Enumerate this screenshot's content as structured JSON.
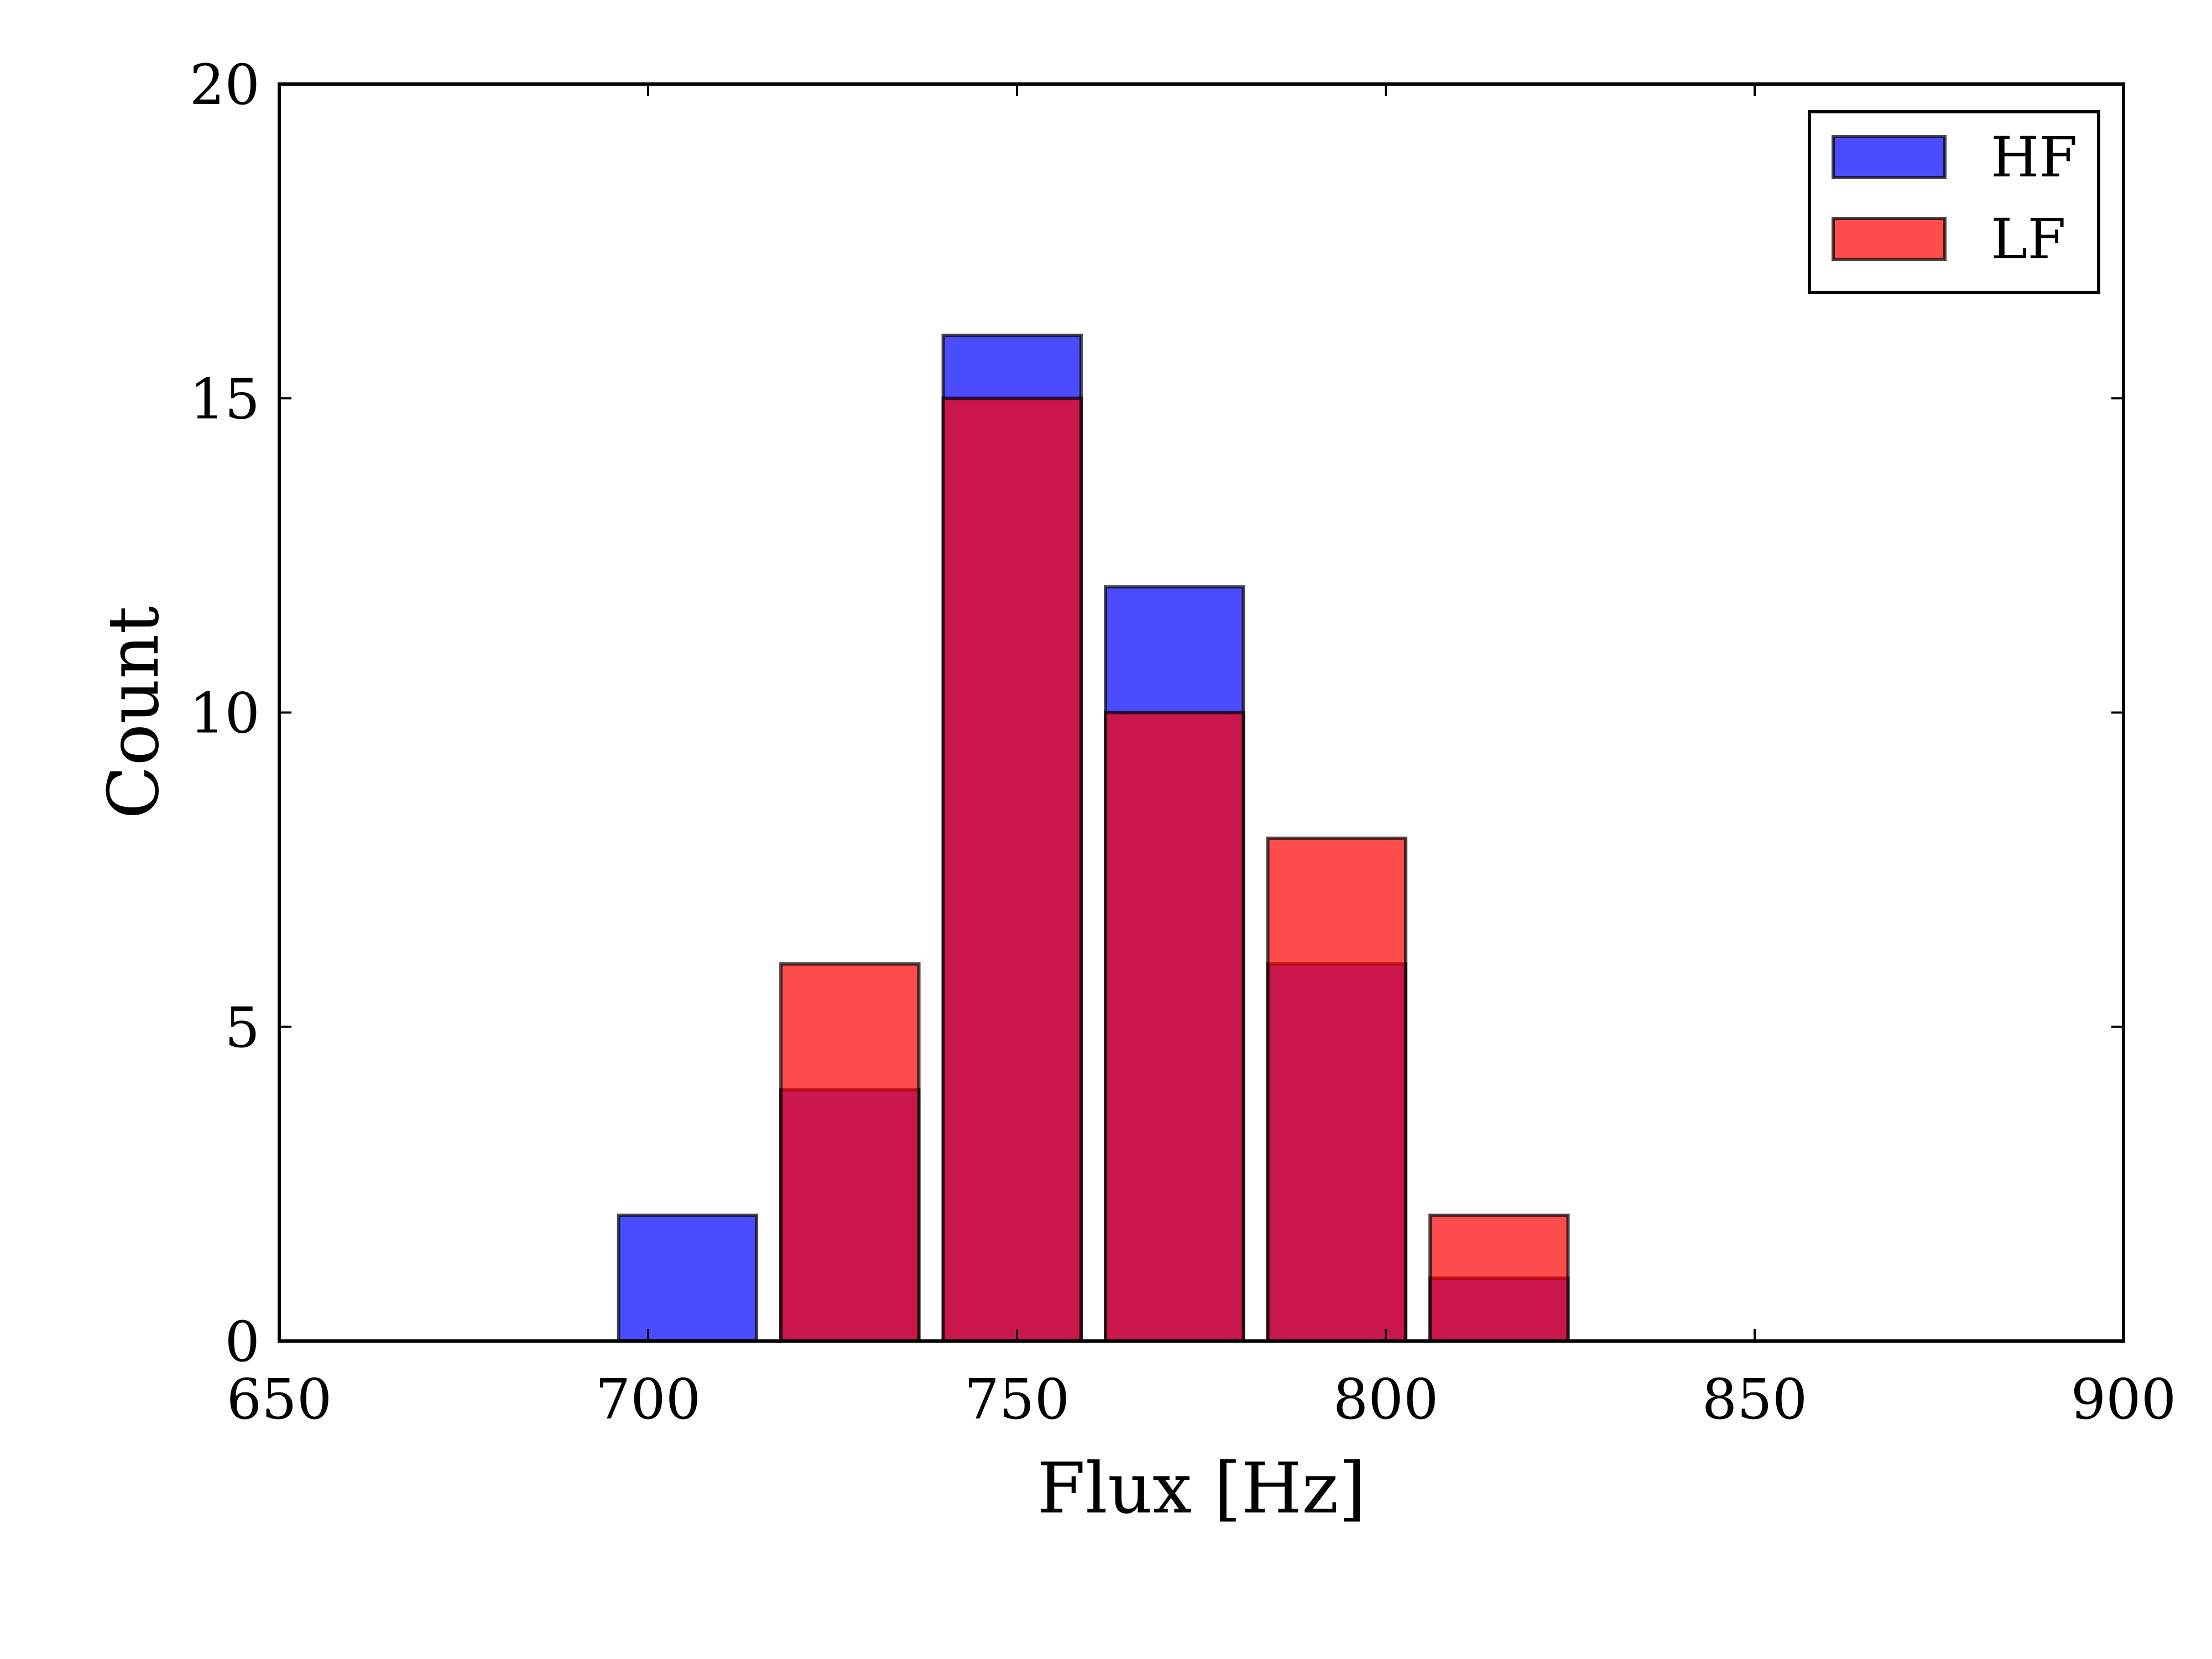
{
  "chart_data": {
    "type": "bar",
    "title": "",
    "xlabel": "Flux [Hz]",
    "ylabel": "Count",
    "xlim": [
      650,
      900
    ],
    "ylim": [
      0,
      20
    ],
    "xticks": [
      650,
      700,
      750,
      800,
      850,
      900
    ],
    "yticks": [
      0,
      5,
      10,
      15,
      20
    ],
    "grid": false,
    "legend_position": "upper right",
    "bin_width": 22,
    "bar_width": 18.7,
    "bin_left_edges": [
      696,
      718,
      740,
      762,
      784,
      806
    ],
    "series": [
      {
        "name": "HF",
        "color": "#0000ff",
        "values": [
          2,
          4,
          16,
          12,
          6,
          1
        ]
      },
      {
        "name": "LF",
        "color": "#ff0000",
        "values": [
          0,
          6,
          15,
          10,
          8,
          2
        ]
      }
    ],
    "bar_opacity": 0.7,
    "edge_color": "#000000"
  }
}
